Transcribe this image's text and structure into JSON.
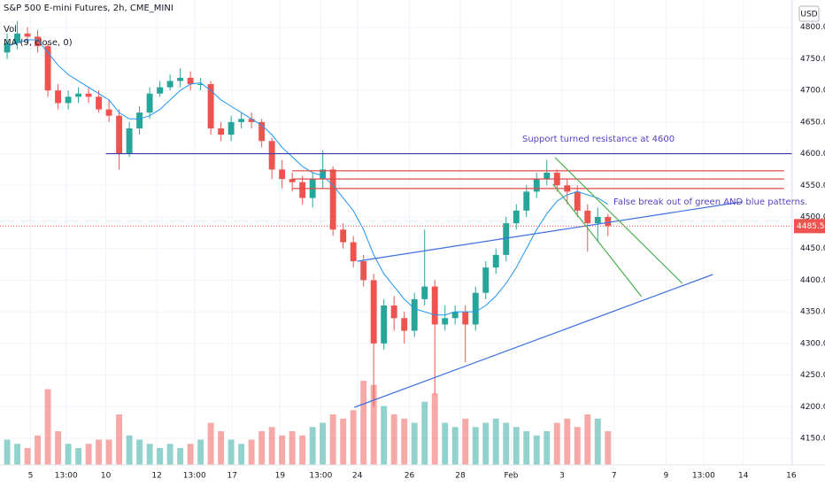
{
  "chart_data": {
    "type": "candlestick",
    "title": "S&P 500 E-mini Futures, 2h, CME_MINI",
    "volume_label": "Vol",
    "ma_label": "MA (9, close, 0)",
    "currency": "USD",
    "annotations": [
      "Support turned resistance at 4600",
      "False break out of green AND blue patterns."
    ],
    "up_color": "#26a69a",
    "down_color": "#ef5350",
    "ma_color": "#2196f3",
    "open": [
      4760,
      4775,
      4790,
      4785,
      4770,
      4700,
      4680,
      4690,
      4695,
      4690,
      4670,
      4660,
      4600,
      4640,
      4665,
      4695,
      4705,
      4715,
      4720,
      4710,
      4710,
      4640,
      4630,
      4650,
      4655,
      4650,
      4620,
      4575,
      4560,
      4555,
      4530,
      4560,
      4575,
      4480,
      4460,
      4430,
      4400,
      4300,
      4360,
      4340,
      4320,
      4370,
      4390,
      4330,
      4340,
      4350,
      4330,
      4380,
      4420,
      4440,
      4490,
      4510,
      4540,
      4560,
      4570,
      4550,
      4540,
      4510,
      4490,
      4500
    ],
    "high": [
      4790,
      4810,
      4800,
      4795,
      4775,
      4710,
      4700,
      4705,
      4705,
      4700,
      4685,
      4670,
      4650,
      4675,
      4705,
      4715,
      4725,
      4735,
      4730,
      4720,
      4715,
      4650,
      4660,
      4665,
      4665,
      4655,
      4625,
      4590,
      4570,
      4565,
      4570,
      4605,
      4580,
      4490,
      4470,
      4440,
      4410,
      4370,
      4375,
      4350,
      4380,
      4480,
      4400,
      4360,
      4360,
      4360,
      4390,
      4430,
      4450,
      4500,
      4520,
      4550,
      4570,
      4590,
      4575,
      4560,
      4550,
      4520,
      4515,
      4505
    ],
    "low": [
      4750,
      4765,
      4775,
      4760,
      4690,
      4670,
      4670,
      4680,
      4680,
      4665,
      4650,
      4575,
      4595,
      4630,
      4655,
      4690,
      4700,
      4705,
      4700,
      4700,
      4630,
      4620,
      4620,
      4640,
      4640,
      4610,
      4560,
      4545,
      4540,
      4520,
      4515,
      4545,
      4470,
      4450,
      4420,
      4390,
      4200,
      4290,
      4320,
      4300,
      4310,
      4360,
      4220,
      4320,
      4330,
      4270,
      4320,
      4370,
      4410,
      4430,
      4480,
      4500,
      4530,
      4550,
      4540,
      4520,
      4500,
      4445,
      4460,
      4470
    ],
    "close": [
      4775,
      4790,
      4785,
      4770,
      4700,
      4680,
      4690,
      4695,
      4690,
      4670,
      4660,
      4600,
      4640,
      4665,
      4695,
      4705,
      4715,
      4720,
      4710,
      4710,
      4640,
      4630,
      4650,
      4655,
      4650,
      4620,
      4575,
      4560,
      4555,
      4530,
      4560,
      4575,
      4480,
      4460,
      4430,
      4400,
      4300,
      4360,
      4340,
      4320,
      4370,
      4390,
      4330,
      4340,
      4350,
      4330,
      4380,
      4420,
      4440,
      4490,
      4510,
      4540,
      4560,
      4570,
      4550,
      4540,
      4510,
      4490,
      4500,
      4485.5
    ],
    "volume": [
      30,
      25,
      20,
      35,
      90,
      40,
      25,
      20,
      25,
      30,
      30,
      60,
      35,
      30,
      25,
      20,
      25,
      20,
      25,
      30,
      50,
      40,
      30,
      25,
      30,
      40,
      45,
      35,
      40,
      35,
      45,
      50,
      60,
      55,
      65,
      100,
      95,
      70,
      60,
      55,
      50,
      75,
      85,
      50,
      45,
      55,
      45,
      50,
      55,
      50,
      45,
      40,
      35,
      40,
      50,
      55,
      45,
      60,
      55,
      40
    ],
    "ma": [
      4770,
      4775,
      4780,
      4780,
      4760,
      4740,
      4725,
      4715,
      4705,
      4695,
      4685,
      4665,
      4655,
      4655,
      4660,
      4670,
      4685,
      4700,
      4710,
      4712,
      4700,
      4685,
      4675,
      4665,
      4655,
      4645,
      4630,
      4610,
      4595,
      4580,
      4570,
      4565,
      4550,
      4530,
      4510,
      4480,
      4440,
      4410,
      4390,
      4370,
      4355,
      4350,
      4345,
      4345,
      4350,
      4350,
      4350,
      4360,
      4375,
      4395,
      4420,
      4450,
      4480,
      4505,
      4525,
      4535,
      4540,
      4535,
      4530,
      4520
    ],
    "drawings": [
      {
        "color": "#3b3ba8",
        "x": [
          9.7,
          77.1
        ],
        "y": [
          4600,
          4600
        ]
      },
      {
        "color": "#e04848",
        "x": [
          28,
          76.3
        ],
        "y": [
          4573,
          4573
        ]
      },
      {
        "color": "#e04848",
        "x": [
          28,
          76.3
        ],
        "y": [
          4560,
          4560
        ]
      },
      {
        "color": "#e04848",
        "x": [
          28,
          76.3
        ],
        "y": [
          4545,
          4545
        ]
      },
      {
        "color": "#3d6fe0",
        "x": [
          34.4,
          72.2
        ],
        "y": [
          4430,
          4524
        ]
      },
      {
        "color": "#3d6fe0",
        "x": [
          34.1,
          69.3
        ],
        "y": [
          4199,
          4409
        ]
      },
      {
        "color": "#4caf50",
        "x": [
          53.8,
          66.3
        ],
        "y": [
          4594,
          4395
        ]
      },
      {
        "color": "#4caf50",
        "x": [
          53.6,
          62.3
        ],
        "y": [
          4552,
          4374
        ]
      }
    ],
    "last_price": {
      "value": 4485.5,
      "label": "4485.50"
    },
    "xlim": [
      -0.7,
      77.1
    ],
    "ylim": [
      4108,
      4843
    ],
    "xticks": [
      {
        "value": 2.3,
        "label": "5"
      },
      {
        "value": 5.8,
        "label": "13:00"
      },
      {
        "value": 9.7,
        "label": "10"
      },
      {
        "value": 14.7,
        "label": "12"
      },
      {
        "value": 18.4,
        "label": "13:00"
      },
      {
        "value": 22.1,
        "label": "17"
      },
      {
        "value": 26.8,
        "label": "19"
      },
      {
        "value": 30.8,
        "label": "13:00"
      },
      {
        "value": 34.4,
        "label": "24"
      },
      {
        "value": 39.5,
        "label": "26"
      },
      {
        "value": 44.5,
        "label": "28"
      },
      {
        "value": 49.5,
        "label": "Feb"
      },
      {
        "value": 54.5,
        "label": "3"
      },
      {
        "value": 59.6,
        "label": "7"
      },
      {
        "value": 64.7,
        "label": "9"
      },
      {
        "value": 68.4,
        "label": "13:00"
      },
      {
        "value": 72.3,
        "label": "14"
      },
      {
        "value": 77,
        "label": "16"
      }
    ],
    "yticks": [
      {
        "value": 4150,
        "label": "4150.00"
      },
      {
        "value": 4200,
        "label": "4200.00"
      },
      {
        "value": 4250,
        "label": "4250.00"
      },
      {
        "value": 4300,
        "label": "4300.00"
      },
      {
        "value": 4350,
        "label": "4350.00"
      },
      {
        "value": 4400,
        "label": "4400.00"
      },
      {
        "value": 4450,
        "label": "4450.00"
      },
      {
        "value": 4500,
        "label": "4500.00"
      },
      {
        "value": 4550,
        "label": "4550.00"
      },
      {
        "value": 4600,
        "label": "4600.00"
      },
      {
        "value": 4650,
        "label": "4650.00"
      },
      {
        "value": 4700,
        "label": "4700.00"
      },
      {
        "value": 4750,
        "label": "4750.00"
      },
      {
        "value": 4800,
        "label": "4800.00"
      }
    ],
    "grid": true
  }
}
